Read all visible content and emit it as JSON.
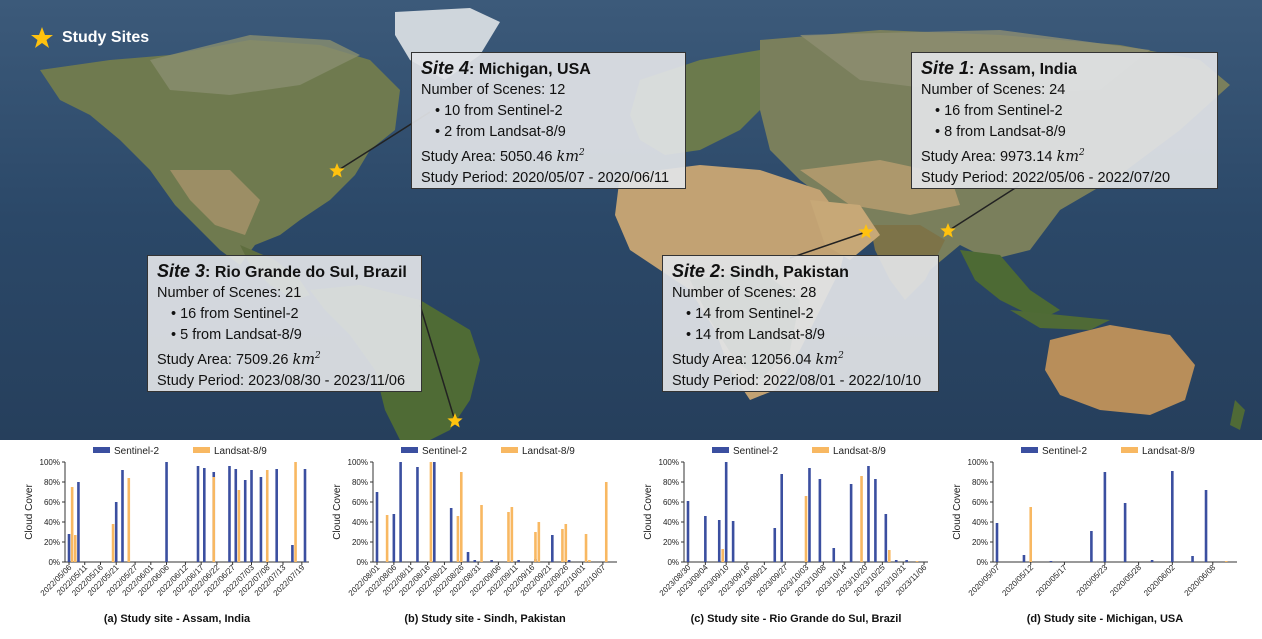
{
  "legend_label": "Study Sites",
  "sites": [
    {
      "id": "site4",
      "name": "Site 4",
      "location": "Michigan, USA",
      "scenes": "Number of Scenes: 12",
      "sentinel": "10 from Sentinel-2",
      "landsat": "2 from Landsat-8/9",
      "area_prefix": "Study Area: 5050.46",
      "area_unit": "km",
      "period": "Study Period: 2020/05/07 - 2020/06/11"
    },
    {
      "id": "site1",
      "name": "Site 1",
      "location": "Assam, India",
      "scenes": "Number of Scenes: 24",
      "sentinel": "16 from Sentinel-2",
      "landsat": "8 from Landsat-8/9",
      "area_prefix": "Study Area: 9973.14",
      "area_unit": "km",
      "period": "Study Period: 2022/05/06 - 2022/07/20"
    },
    {
      "id": "site3",
      "name": "Site 3",
      "location": "Rio Grande do Sul, Brazil",
      "scenes": "Number of Scenes: 21",
      "sentinel": "16 from Sentinel-2",
      "landsat": "5 from Landsat-8/9",
      "area_prefix": "Study Area: 7509.26",
      "area_unit": "km",
      "period": "Study Period: 2023/08/30 - 2023/11/06"
    },
    {
      "id": "site2",
      "name": "Site 2",
      "location": "Sindh, Pakistan",
      "scenes": "Number of Scenes: 28",
      "sentinel": "14 from Sentinel-2",
      "landsat": "14 from Landsat-8/9",
      "area_prefix": "Study Area: 12056.04",
      "area_unit": "km",
      "period": "Study Period: 2022/08/01 - 2022/10/10"
    }
  ],
  "colors": {
    "sentinel": "#3b4fa0",
    "landsat": "#f8b862",
    "star": "#ffc20e",
    "ocean": "#2d4a6b"
  },
  "chart_data": [
    {
      "type": "bar",
      "title": "(a) Study site - Assam, India",
      "ylabel": "Cloud Cover",
      "ylim": [
        0,
        100
      ],
      "yticks": [
        "0%",
        "20%",
        "40%",
        "60%",
        "80%",
        "100%"
      ],
      "date_range": [
        "2022/05/06",
        "2022/07/20"
      ],
      "xticks": [
        "2022/05/06",
        "2022/05/11",
        "2022/05/16",
        "2022/05/21",
        "2022/05/27",
        "2022/06/01",
        "2022/06/06",
        "2022/06/12",
        "2022/06/17",
        "2022/06/22",
        "2022/06/27",
        "2022/07/03",
        "2022/07/08",
        "2022/07/13",
        "2022/07/19"
      ],
      "legend": [
        "Sentinel-2",
        "Landsat-8/9"
      ],
      "series": [
        {
          "name": "Sentinel-2",
          "x": [
            "2022/05/06",
            "2022/05/09",
            "2022/05/21",
            "2022/05/23",
            "2022/06/06",
            "2022/06/16",
            "2022/06/18",
            "2022/06/21",
            "2022/06/26",
            "2022/06/28",
            "2022/07/01",
            "2022/07/03",
            "2022/07/06",
            "2022/07/11",
            "2022/07/16",
            "2022/07/20"
          ],
          "y": [
            28,
            80,
            60,
            92,
            100,
            96,
            94,
            90,
            96,
            93,
            82,
            92,
            85,
            93,
            17,
            93
          ]
        },
        {
          "name": "Landsat-8/9",
          "x": [
            "2022/05/07",
            "2022/05/08",
            "2022/05/20",
            "2022/05/25",
            "2022/06/21",
            "2022/06/29",
            "2022/07/08",
            "2022/07/17"
          ],
          "y": [
            75,
            27,
            38,
            84,
            85,
            72,
            92,
            100
          ]
        }
      ]
    },
    {
      "type": "bar",
      "title": "(b) Study site - Sindh, Pakistan",
      "ylabel": "Cloud Cover",
      "ylim": [
        0,
        100
      ],
      "yticks": [
        "0%",
        "20%",
        "40%",
        "60%",
        "80%",
        "100%"
      ],
      "date_range": [
        "2022/08/01",
        "2022/10/10"
      ],
      "xticks": [
        "2022/08/01",
        "2022/08/06",
        "2022/08/11",
        "2022/08/16",
        "2022/08/21",
        "2022/08/26",
        "2022/08/31",
        "2022/09/06",
        "2022/09/11",
        "2022/09/16",
        "2022/09/21",
        "2022/09/26",
        "2022/10/01",
        "2022/10/07"
      ],
      "legend": [
        "Sentinel-2",
        "Landsat-8/9"
      ],
      "series": [
        {
          "name": "Sentinel-2",
          "x": [
            "2022/08/01",
            "2022/08/06",
            "2022/08/08",
            "2022/08/13",
            "2022/08/18",
            "2022/08/23",
            "2022/08/28",
            "2022/08/30",
            "2022/09/04",
            "2022/09/12",
            "2022/09/17",
            "2022/09/22",
            "2022/09/27",
            "2022/10/02"
          ],
          "y": [
            70,
            48,
            100,
            95,
            100,
            54,
            10,
            2,
            2,
            2,
            3,
            27,
            2,
            1
          ]
        },
        {
          "name": "Landsat-8/9",
          "x": [
            "2022/08/04",
            "2022/08/17",
            "2022/08/25",
            "2022/08/26",
            "2022/09/01",
            "2022/09/09",
            "2022/09/10",
            "2022/09/17",
            "2022/09/18",
            "2022/09/25",
            "2022/09/26",
            "2022/10/02",
            "2022/10/03",
            "2022/10/08"
          ],
          "y": [
            47,
            100,
            46,
            90,
            57,
            50,
            55,
            30,
            40,
            33,
            38,
            28,
            2,
            80
          ]
        }
      ]
    },
    {
      "type": "bar",
      "title": "(c) Study site - Rio Grande do Sul, Brazil",
      "ylabel": "Cloud Cover",
      "ylim": [
        0,
        100
      ],
      "yticks": [
        "0%",
        "20%",
        "40%",
        "60%",
        "80%",
        "100%"
      ],
      "date_range": [
        "2023/08/30",
        "2023/11/06"
      ],
      "xticks": [
        "2023/08/30",
        "2023/09/04",
        "2023/09/10",
        "2023/09/16",
        "2023/09/21",
        "2023/09/27",
        "2023/10/03",
        "2023/10/08",
        "2023/10/14",
        "2023/10/20",
        "2023/10/25",
        "2023/10/31",
        "2023/11/06"
      ],
      "legend": [
        "Sentinel-2",
        "Landsat-8/9"
      ],
      "series": [
        {
          "name": "Sentinel-2",
          "x": [
            "2023/08/30",
            "2023/09/04",
            "2023/09/08",
            "2023/09/10",
            "2023/09/12",
            "2023/09/24",
            "2023/09/26",
            "2023/10/04",
            "2023/10/07",
            "2023/10/11",
            "2023/10/16",
            "2023/10/21",
            "2023/10/23",
            "2023/10/26",
            "2023/10/29",
            "2023/11/01"
          ],
          "y": [
            61,
            46,
            42,
            100,
            41,
            34,
            88,
            94,
            83,
            14,
            78,
            96,
            83,
            48,
            2,
            2
          ]
        },
        {
          "name": "Landsat-8/9",
          "x": [
            "2023/09/09",
            "2023/10/03",
            "2023/10/19",
            "2023/10/27",
            "2023/11/04"
          ],
          "y": [
            13,
            66,
            86,
            12,
            1
          ]
        }
      ]
    },
    {
      "type": "bar",
      "title": "(d) Study site - Michigan, USA",
      "ylabel": "Cloud Cover",
      "ylim": [
        0,
        100
      ],
      "yticks": [
        "0%",
        "20%",
        "40%",
        "60%",
        "80%",
        "100%"
      ],
      "date_range": [
        "2020/05/07",
        "2020/06/11"
      ],
      "xticks": [
        "2020/05/07",
        "2020/05/12",
        "2020/05/17",
        "2020/05/23",
        "2020/05/28",
        "2020/06/02",
        "2020/06/08"
      ],
      "legend": [
        "Sentinel-2",
        "Landsat-8/9"
      ],
      "series": [
        {
          "name": "Sentinel-2",
          "x": [
            "2020/05/07",
            "2020/05/11",
            "2020/05/15",
            "2020/05/21",
            "2020/05/23",
            "2020/05/26",
            "2020/05/30",
            "2020/06/02",
            "2020/06/05",
            "2020/06/07"
          ],
          "y": [
            39,
            7,
            1,
            31,
            90,
            59,
            2,
            91,
            6,
            72
          ]
        },
        {
          "name": "Landsat-8/9",
          "x": [
            "2020/05/12",
            "2020/06/10"
          ],
          "y": [
            55,
            1
          ]
        }
      ]
    }
  ]
}
